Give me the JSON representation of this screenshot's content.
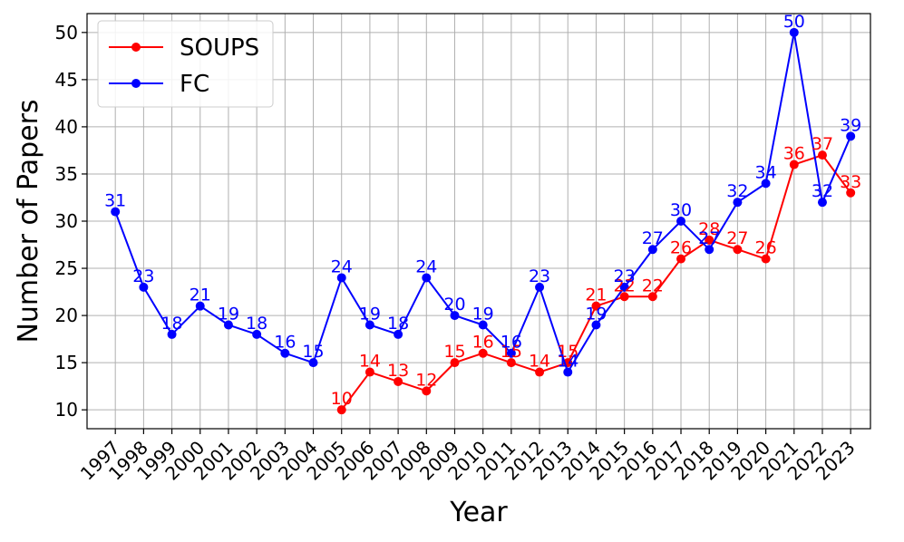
{
  "chart_data": {
    "type": "line",
    "title": "",
    "xlabel": "Year",
    "ylabel": "Number of Papers",
    "x": [
      1997,
      1998,
      1999,
      2000,
      2001,
      2002,
      2003,
      2004,
      2005,
      2006,
      2007,
      2008,
      2009,
      2010,
      2011,
      2012,
      2013,
      2014,
      2015,
      2016,
      2017,
      2018,
      2019,
      2020,
      2021,
      2022,
      2023
    ],
    "xlim": [
      1996.0,
      2023.7
    ],
    "ylim": [
      8,
      52
    ],
    "yticks": [
      10,
      15,
      20,
      25,
      30,
      35,
      40,
      45,
      50
    ],
    "grid": true,
    "legend_position": "top-left",
    "series": [
      {
        "name": "SOUPS",
        "color": "#ff0000",
        "values": [
          null,
          null,
          null,
          null,
          null,
          null,
          null,
          null,
          10,
          14,
          13,
          12,
          15,
          16,
          15,
          14,
          15,
          21,
          22,
          22,
          26,
          28,
          27,
          26,
          36,
          37,
          33
        ]
      },
      {
        "name": "FC",
        "color": "#0000ff",
        "values": [
          31,
          23,
          18,
          21,
          19,
          18,
          16,
          15,
          24,
          19,
          18,
          24,
          20,
          19,
          16,
          23,
          14,
          19,
          23,
          27,
          30,
          27,
          32,
          34,
          50,
          32,
          39
        ]
      }
    ]
  }
}
